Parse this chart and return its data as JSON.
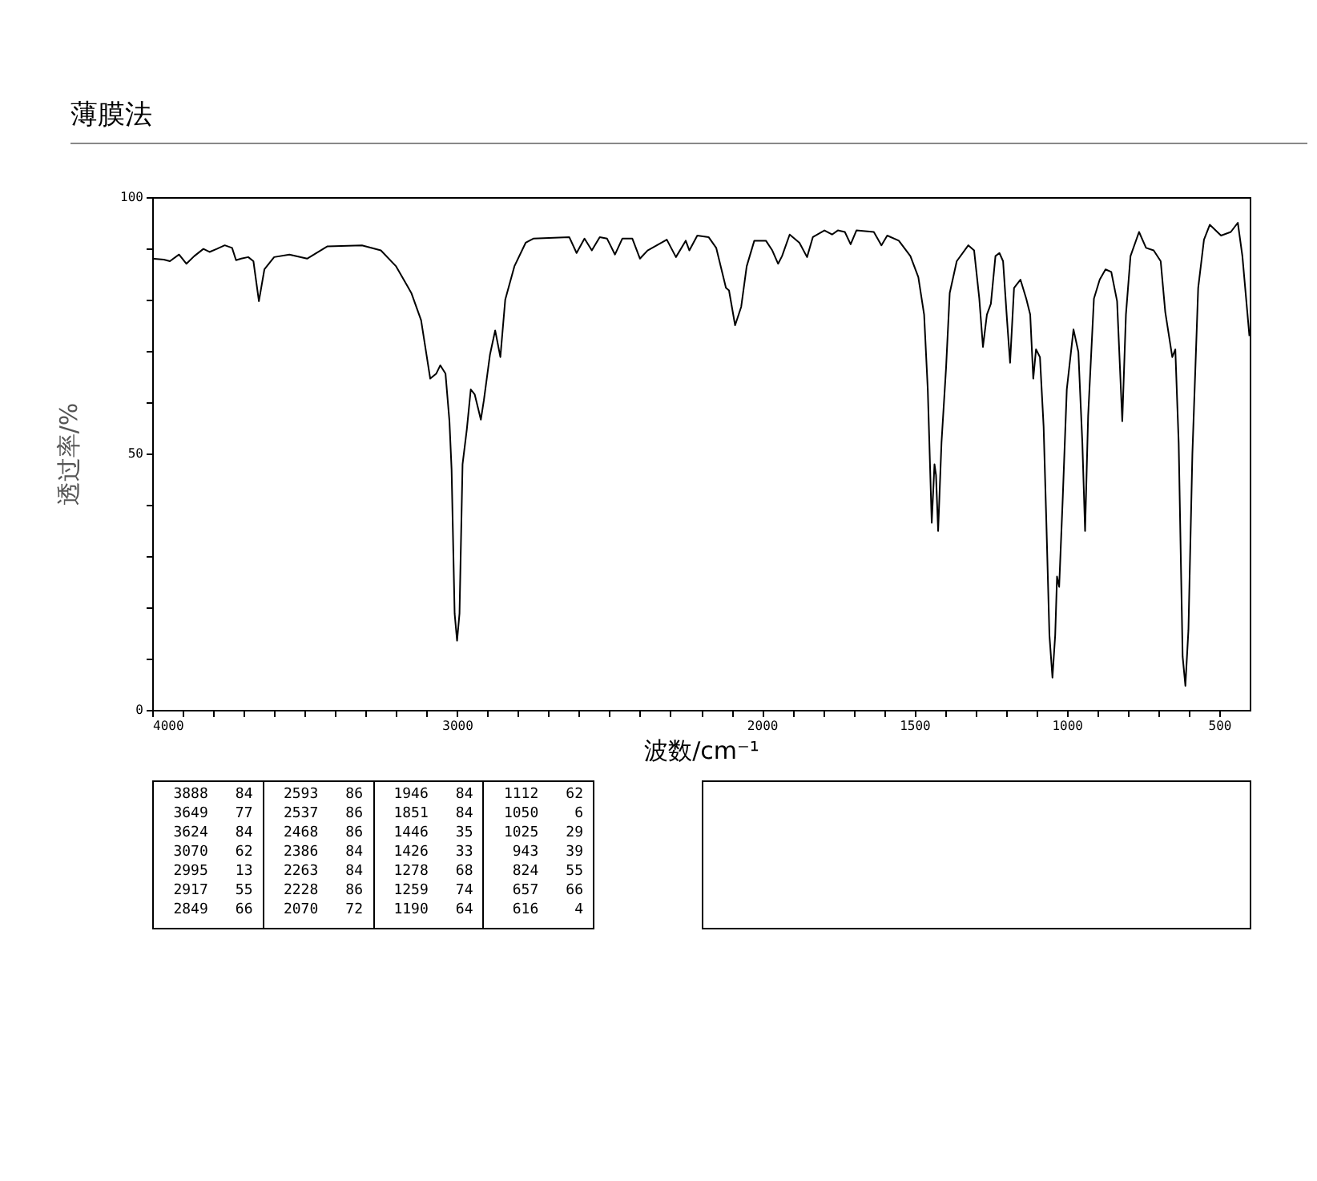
{
  "chart_data": [
    {
      "type": "line",
      "title": "薄膜法",
      "xlabel": "波数/cm⁻¹",
      "ylabel": "透过率/%",
      "xlim": [
        4000,
        400
      ],
      "ylim": [
        0,
        100
      ],
      "xticks": [
        4000,
        {
          "value": 3900,
          "label": null
        },
        {
          "value": 3800,
          "label": null
        },
        {
          "value": 3700,
          "label": null
        },
        {
          "value": 3600,
          "label": null
        },
        {
          "value": 3500,
          "label": null
        },
        {
          "value": 3400,
          "label": null
        },
        {
          "value": 3300,
          "label": null
        },
        {
          "value": 3200,
          "label": null
        },
        {
          "value": 3100,
          "label": null
        },
        3000,
        {
          "value": 2900,
          "label": null
        },
        {
          "value": 2800,
          "label": null
        },
        {
          "value": 2700,
          "label": null
        },
        {
          "value": 2600,
          "label": null
        },
        {
          "value": 2500,
          "label": null
        },
        {
          "value": 2400,
          "label": null
        },
        {
          "value": 2300,
          "label": null
        },
        {
          "value": 2200,
          "label": null
        },
        {
          "value": 2100,
          "label": null
        },
        2000,
        {
          "value": 1900,
          "label": null
        },
        {
          "value": 1800,
          "label": null
        },
        {
          "value": 1700,
          "label": null
        },
        {
          "value": 1600,
          "label": null
        },
        1500,
        {
          "value": 1400,
          "label": null
        },
        {
          "value": 1300,
          "label": null
        },
        {
          "value": 1200,
          "label": null
        },
        {
          "value": 1100,
          "label": null
        },
        1000,
        {
          "value": 900,
          "label": null
        },
        {
          "value": 800,
          "label": null
        },
        {
          "value": 700,
          "label": null
        },
        {
          "value": 600,
          "label": null
        },
        500
      ],
      "yticks": [
        0,
        {
          "value": 10,
          "label": null
        },
        {
          "value": 20,
          "label": null
        },
        {
          "value": 30,
          "label": null
        },
        {
          "value": 40,
          "label": null
        },
        50,
        {
          "value": 60,
          "label": null
        },
        {
          "value": 70,
          "label": null
        },
        {
          "value": 80,
          "label": null
        },
        {
          "value": 90,
          "label": null
        },
        100
      ],
      "marker": "none",
      "line_style": "solid",
      "x": [
        4000,
        3962,
        3942,
        3912,
        3888,
        3862,
        3832,
        3812,
        3788,
        3762,
        3738,
        3725,
        3708,
        3685,
        3668,
        3650,
        3632,
        3600,
        3550,
        3492,
        3425,
        3312,
        3250,
        3200,
        3150,
        3118,
        3088,
        3068,
        3055,
        3038,
        3025,
        3018,
        3008,
        3000,
        2992,
        2982,
        2968,
        2955,
        2942,
        2922,
        2912,
        2892,
        2875,
        2858,
        2842,
        2812,
        2775,
        2750,
        2632,
        2608,
        2582,
        2558,
        2532,
        2508,
        2482,
        2458,
        2425,
        2400,
        2375,
        2312,
        2282,
        2250,
        2238,
        2212,
        2175,
        2150,
        2118,
        2108,
        2088,
        2068,
        2050,
        2025,
        1987,
        1966,
        1947,
        1934,
        1909,
        1877,
        1852,
        1833,
        1795,
        1770,
        1751,
        1728,
        1709,
        1690,
        1633,
        1608,
        1589,
        1551,
        1513,
        1487,
        1468,
        1456,
        1443,
        1434,
        1429,
        1422,
        1411,
        1396,
        1384,
        1361,
        1323,
        1304,
        1287,
        1275,
        1262,
        1249,
        1234,
        1221,
        1209,
        1196,
        1186,
        1173,
        1152,
        1133,
        1120,
        1110,
        1101,
        1088,
        1076,
        1067,
        1057,
        1047,
        1038,
        1032,
        1025,
        1013,
        1000,
        978,
        962,
        949,
        940,
        930,
        911,
        892,
        873,
        854,
        835,
        818,
        806,
        791,
        763,
        740,
        715,
        692,
        677,
        654,
        644,
        633,
        620,
        611,
        601,
        588,
        569,
        550,
        531,
        494,
        462,
        439,
        424,
        401
      ],
      "series": [
        {
          "color": "#000000",
          "values": [
            88.0,
            87.8,
            87.5,
            88.8,
            87.0,
            88.5,
            89.9,
            89.3,
            89.9,
            90.6,
            90.1,
            87.7,
            88.0,
            88.3,
            87.5,
            79.7,
            85.9,
            88.3,
            88.8,
            88.0,
            90.4,
            90.6,
            89.6,
            86.5,
            81.3,
            76.0,
            64.6,
            65.6,
            67.2,
            65.6,
            56.3,
            46.9,
            18.8,
            13.5,
            18.8,
            47.9,
            54.7,
            62.5,
            61.5,
            56.6,
            60.4,
            69.3,
            74.0,
            68.8,
            80.0,
            86.5,
            91.1,
            91.9,
            92.2,
            89.1,
            91.9,
            89.6,
            92.2,
            91.9,
            88.8,
            91.9,
            91.9,
            88.0,
            89.6,
            91.7,
            88.3,
            91.5,
            89.6,
            92.5,
            92.2,
            90.1,
            82.3,
            81.8,
            75.0,
            78.6,
            86.5,
            91.5,
            91.5,
            89.6,
            87.0,
            88.5,
            92.7,
            91.1,
            88.3,
            92.2,
            93.5,
            92.7,
            93.5,
            93.2,
            90.8,
            93.5,
            93.2,
            90.6,
            92.5,
            91.5,
            88.5,
            84.4,
            77.1,
            62.5,
            36.5,
            47.9,
            45.8,
            34.9,
            52.1,
            66.7,
            81.3,
            87.5,
            90.6,
            89.6,
            80.2,
            70.8,
            77.1,
            79.2,
            88.5,
            89.1,
            87.5,
            76.0,
            67.7,
            82.3,
            83.9,
            80.2,
            77.1,
            64.6,
            70.3,
            68.8,
            55.2,
            36.5,
            14.6,
            6.3,
            14.6,
            26.0,
            24.0,
            41.7,
            62.5,
            74.2,
            69.8,
            52.1,
            34.9,
            57.3,
            80.2,
            83.9,
            85.9,
            85.4,
            79.7,
            56.3,
            77.1,
            88.5,
            93.2,
            90.1,
            89.6,
            87.5,
            77.6,
            68.8,
            70.3,
            52.1,
            10.4,
            4.7,
            15.6,
            50.0,
            82.3,
            91.7,
            94.6,
            92.5,
            93.2,
            95.0,
            88.5,
            72.9
          ]
        }
      ]
    },
    {
      "type": "other",
      "annotations": [
        "3888",
        "84",
        "2593",
        "86",
        "1946",
        "84",
        "1112",
        "62",
        "3649",
        "77",
        "2537",
        "86",
        "1851",
        "84",
        "1050",
        "6",
        "3624",
        "84",
        "2468",
        "86",
        "1446",
        "35",
        "1025",
        "29",
        "3070",
        "62",
        "2386",
        "84",
        "1426",
        "33",
        "943",
        "39",
        "2995",
        "13",
        "2263",
        "84",
        "1278",
        "68",
        "824",
        "55",
        "2917",
        "55",
        "2228",
        "86",
        "1259",
        "74",
        "657",
        "66",
        "2849",
        "66",
        "2070",
        "72",
        "1190",
        "64",
        "616",
        "4"
      ]
    }
  ]
}
